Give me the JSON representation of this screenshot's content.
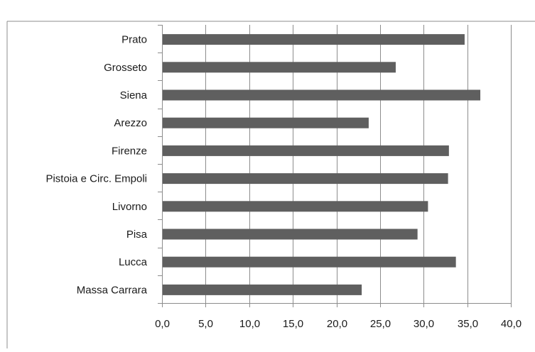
{
  "chart_data": {
    "type": "bar",
    "orientation": "horizontal",
    "title": "",
    "xlabel": "",
    "ylabel": "",
    "categories": [
      "Prato",
      "Grosseto",
      "Siena",
      "Arezzo",
      "Firenze",
      "Pistoia e Circ. Empoli",
      "Livorno",
      "Pisa",
      "Lucca",
      "Massa Carrara"
    ],
    "values": [
      34.7,
      26.8,
      36.5,
      23.7,
      32.9,
      32.8,
      30.5,
      29.3,
      33.7,
      22.9
    ],
    "xlim": [
      0,
      40
    ],
    "xticks": [
      "0,0",
      "5,0",
      "10,0",
      "15,0",
      "20,0",
      "25,0",
      "30,0",
      "35,0",
      "40,0"
    ],
    "grid": "vertical",
    "legend": "none",
    "bar_color": "#5f5f5f",
    "grid_color": "#8c8c8c",
    "border_color": "#8c8c8c"
  }
}
